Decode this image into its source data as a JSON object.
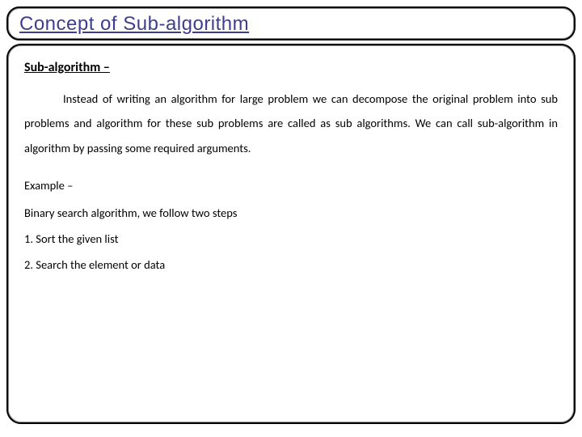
{
  "title": "Concept of Sub-algorithm",
  "subheading": "Sub-algorithm –",
  "body": "Instead of writing an algorithm for large problem we can decompose the original problem into sub problems and algorithm for these sub problems are called as sub algorithms. We can call sub-algorithm in algorithm by passing some required arguments.",
  "example_label": "Example –",
  "example_desc": "Binary search algorithm, we follow two steps",
  "steps": [
    "1.  Sort the given list",
    "2.  Search the element or data"
  ],
  "colors": {
    "title_color": "#3e3e8f",
    "border_color": "#000000",
    "text_color": "#000000",
    "background": "#ffffff"
  },
  "typography": {
    "title_fontsize": 24,
    "body_fontsize": 14.5,
    "subheading_fontsize": 16,
    "line_height": 2.1
  },
  "layout": {
    "title_border_radius": 16,
    "content_border_radius": 18,
    "body_text_indent": 48
  }
}
